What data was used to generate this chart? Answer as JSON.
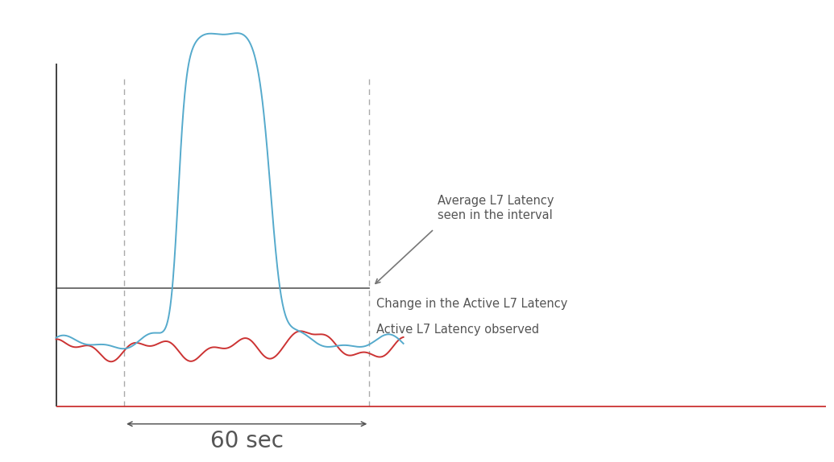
{
  "bg_color": "#ffffff",
  "left_axis_color": "#333333",
  "bottom_axis_color": "#cc3333",
  "dashed_line_color": "#aaaaaa",
  "avg_line_color": "#666666",
  "blue_line_color": "#55aacc",
  "red_line_color": "#cc3333",
  "text_color": "#555555",
  "annotation_arrow_color": "#777777",
  "title_60sec": "60 sec",
  "label_avg": "Average L7 Latency\nseen in the interval",
  "label_change": "Change in the Active L7 Latency",
  "label_active": "Active L7 Latency observed",
  "xlim": [
    0,
    120
  ],
  "ylim": [
    -5,
    110
  ],
  "left_dashed_x": 17,
  "right_dashed_x": 53,
  "avg_line_y": 38,
  "axis_x": 7,
  "bottom_line_y": 8,
  "base_signal_y": 24,
  "spike_height": 78,
  "spike_top_y": 82
}
